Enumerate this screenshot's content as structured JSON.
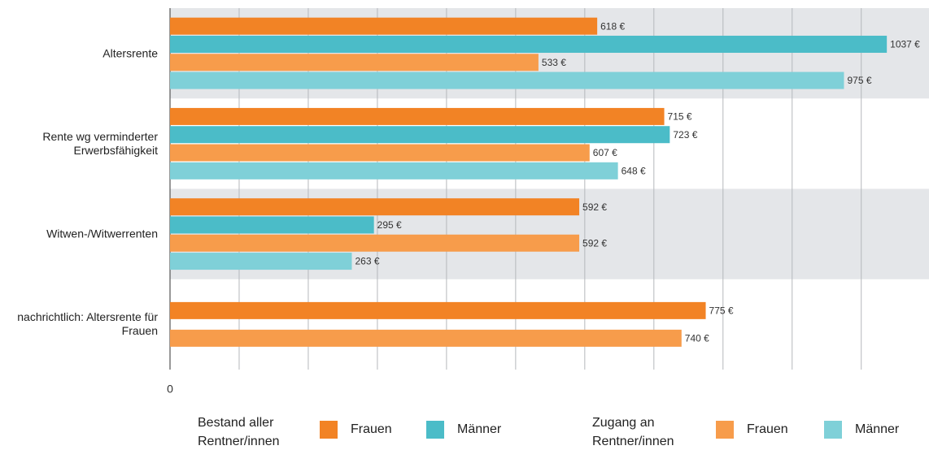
{
  "chart_data": {
    "type": "barh",
    "categories": [
      "Altersrente",
      "Rente wg verminderter Erwerbsfähigkeit",
      "Witwen-/Witwerrenten",
      "nachrichtlich: Altersrente für Frauen"
    ],
    "legend_groups": [
      "Bestand aller Rentner/innen",
      "Zugang an Rentner/innen"
    ],
    "series": [
      {
        "name": "Frauen",
        "color": "#f28325",
        "values": [
          618,
          715,
          592,
          775
        ],
        "value_labels": [
          "618 €",
          "715 €",
          "592 €",
          "775 €"
        ]
      },
      {
        "name": "Männer",
        "color": "#4bbcc8",
        "values": [
          1037,
          723,
          295,
          null
        ],
        "value_labels": [
          "1037 €",
          "723 €",
          "295 €",
          null
        ]
      },
      {
        "name": "Frauen",
        "color": "#f79c4b",
        "values": [
          533,
          607,
          592,
          740
        ],
        "value_labels": [
          "533 €",
          "607 €",
          "592 €",
          "740 €"
        ]
      },
      {
        "name": "Männer",
        "color": "#7fd0d8",
        "values": [
          975,
          648,
          263,
          null
        ],
        "value_labels": [
          "975 €",
          "648 €",
          "263 €",
          null
        ]
      }
    ],
    "xlim": [
      0,
      1098
    ],
    "xticks": [
      0
    ],
    "x_gridlines": [
      100,
      200,
      300,
      400,
      500,
      600,
      700,
      800,
      900,
      1000
    ],
    "grid": true,
    "band_color": "#e4e6e9"
  }
}
